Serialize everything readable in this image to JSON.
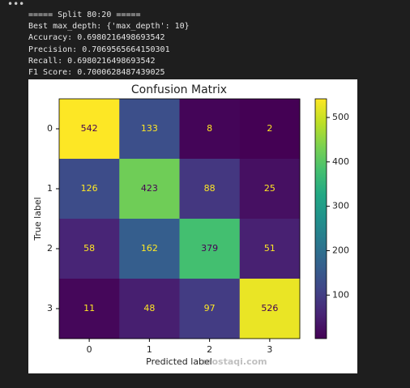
{
  "header": {
    "menu": "•••"
  },
  "output": {
    "lines": [
      "===== Split 80:20 =====",
      "Best max_depth: {'max_depth': 10}",
      "Accuracy: 0.6980216498693542",
      "Precision: 0.7069565664150301",
      "Recall: 0.6980216498693542",
      "F1 Score: 0.7000628487439025"
    ]
  },
  "chart_data": {
    "type": "heatmap",
    "title": "Confusion Matrix",
    "x_label": "Predicted label",
    "y_label": "True label",
    "x_categories": [
      "0",
      "1",
      "2",
      "3"
    ],
    "y_categories": [
      "0",
      "1",
      "2",
      "3"
    ],
    "values": [
      [
        542,
        133,
        8,
        2
      ],
      [
        126,
        423,
        88,
        25
      ],
      [
        58,
        162,
        379,
        51
      ],
      [
        11,
        48,
        97,
        526
      ]
    ],
    "colormap": "viridis",
    "clim": [
      2,
      542
    ],
    "colorbar_ticks": [
      100,
      200,
      300,
      400,
      500
    ]
  },
  "watermark": "mostaqi.com"
}
